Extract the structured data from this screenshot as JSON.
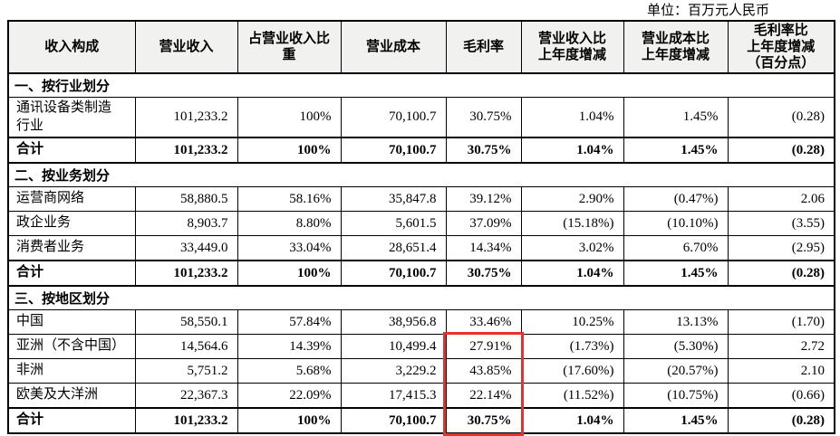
{
  "unit_label": "单位：百万元人民币",
  "table": {
    "header": [
      "收入构成",
      "营业收入",
      "占营业收入比\n重",
      "营业成本",
      "毛利率",
      "营业收入比\n上年度增减",
      "营业成本比\n上年度增减",
      "毛利率比\n上年度增减\n（百分点）"
    ],
    "sections": [
      {
        "title": "一、按行业划分",
        "rows": [
          {
            "label": "通讯设备类制造\n行业",
            "values": [
              "101,233.2",
              "100%",
              "70,100.7",
              "30.75%",
              "1.04%",
              "1.45%",
              "(0.28)"
            ]
          },
          {
            "label": "合计",
            "values": [
              "101,233.2",
              "100%",
              "70,100.7",
              "30.75%",
              "1.04%",
              "1.45%",
              "(0.28)"
            ]
          }
        ]
      },
      {
        "title": "二、按业务划分",
        "rows": [
          {
            "label": "运营商网络",
            "values": [
              "58,880.5",
              "58.16%",
              "35,847.8",
              "39.12%",
              "2.90%",
              "(0.47%)",
              "2.06"
            ]
          },
          {
            "label": "政企业务",
            "values": [
              "8,903.7",
              "8.80%",
              "5,601.5",
              "37.09%",
              "(15.18%)",
              "(10.10%)",
              "(3.55)"
            ]
          },
          {
            "label": "消费者业务",
            "values": [
              "33,449.0",
              "33.04%",
              "28,651.4",
              "14.34%",
              "3.02%",
              "6.70%",
              "(2.95)"
            ]
          },
          {
            "label": "合计",
            "values": [
              "101,233.2",
              "100%",
              "70,100.7",
              "30.75%",
              "1.04%",
              "1.45%",
              "(0.28)"
            ]
          }
        ]
      },
      {
        "title": "三、按地区划分",
        "rows": [
          {
            "label": "中国",
            "values": [
              "58,550.1",
              "57.84%",
              "38,956.8",
              "33.46%",
              "10.25%",
              "13.13%",
              "(1.70)"
            ]
          },
          {
            "label": "亚洲（不含中国）",
            "values": [
              "14,564.6",
              "14.39%",
              "10,499.4",
              "27.91%",
              "(1.73%)",
              "(5.30%)",
              "2.72"
            ]
          },
          {
            "label": "非洲",
            "values": [
              "5,751.2",
              "5.68%",
              "3,229.2",
              "43.85%",
              "(17.60%)",
              "(20.57%)",
              "2.10"
            ]
          },
          {
            "label": "欧美及大洋洲",
            "values": [
              "22,367.3",
              "22.09%",
              "17,415.3",
              "22.14%",
              "(11.52%)",
              "(10.75%)",
              "(0.66)"
            ]
          },
          {
            "label": "合计",
            "values": [
              "101,233.2",
              "100%",
              "70,100.7",
              "30.75%",
              "1.04%",
              "1.45%",
              "(0.28)"
            ]
          }
        ]
      }
    ]
  },
  "highlight": {
    "color": "#e8312a",
    "column": "毛利率",
    "rows": [
      "亚洲（不含中国）",
      "非洲",
      "欧美及大洋洲",
      "合计"
    ]
  },
  "colors": {
    "border": "#000000",
    "header_bg": "#f1f1ef",
    "text": "#000000",
    "highlight_red": "#e8312a"
  }
}
